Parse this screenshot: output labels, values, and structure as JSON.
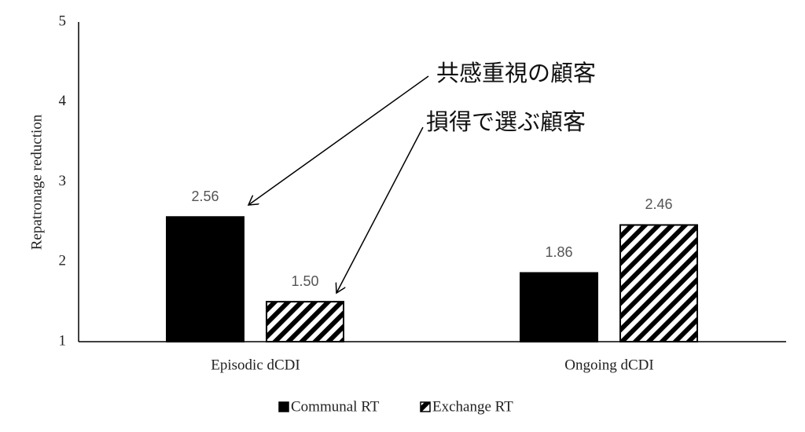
{
  "chart_data": {
    "type": "bar",
    "y_label": "Repatronage reduction",
    "categories": [
      "Episodic dCDI",
      "Ongoing dCDI"
    ],
    "series": [
      {
        "name": "Communal RT",
        "color": "#000000",
        "hatch": false,
        "values": [
          2.56,
          1.86
        ],
        "value_labels": [
          "2.56",
          "1.86"
        ]
      },
      {
        "name": "Exchange RT",
        "color": "#000000",
        "hatch": true,
        "values": [
          1.5,
          2.46
        ],
        "value_labels": [
          "1.50",
          "2.46"
        ]
      }
    ],
    "ylim": [
      1,
      5
    ],
    "yticks": [
      1,
      2,
      3,
      4,
      5
    ],
    "grid": false,
    "annotations": [
      {
        "text": "共感重視の顧客"
      },
      {
        "text": "損得で選ぶ顧客"
      }
    ]
  }
}
